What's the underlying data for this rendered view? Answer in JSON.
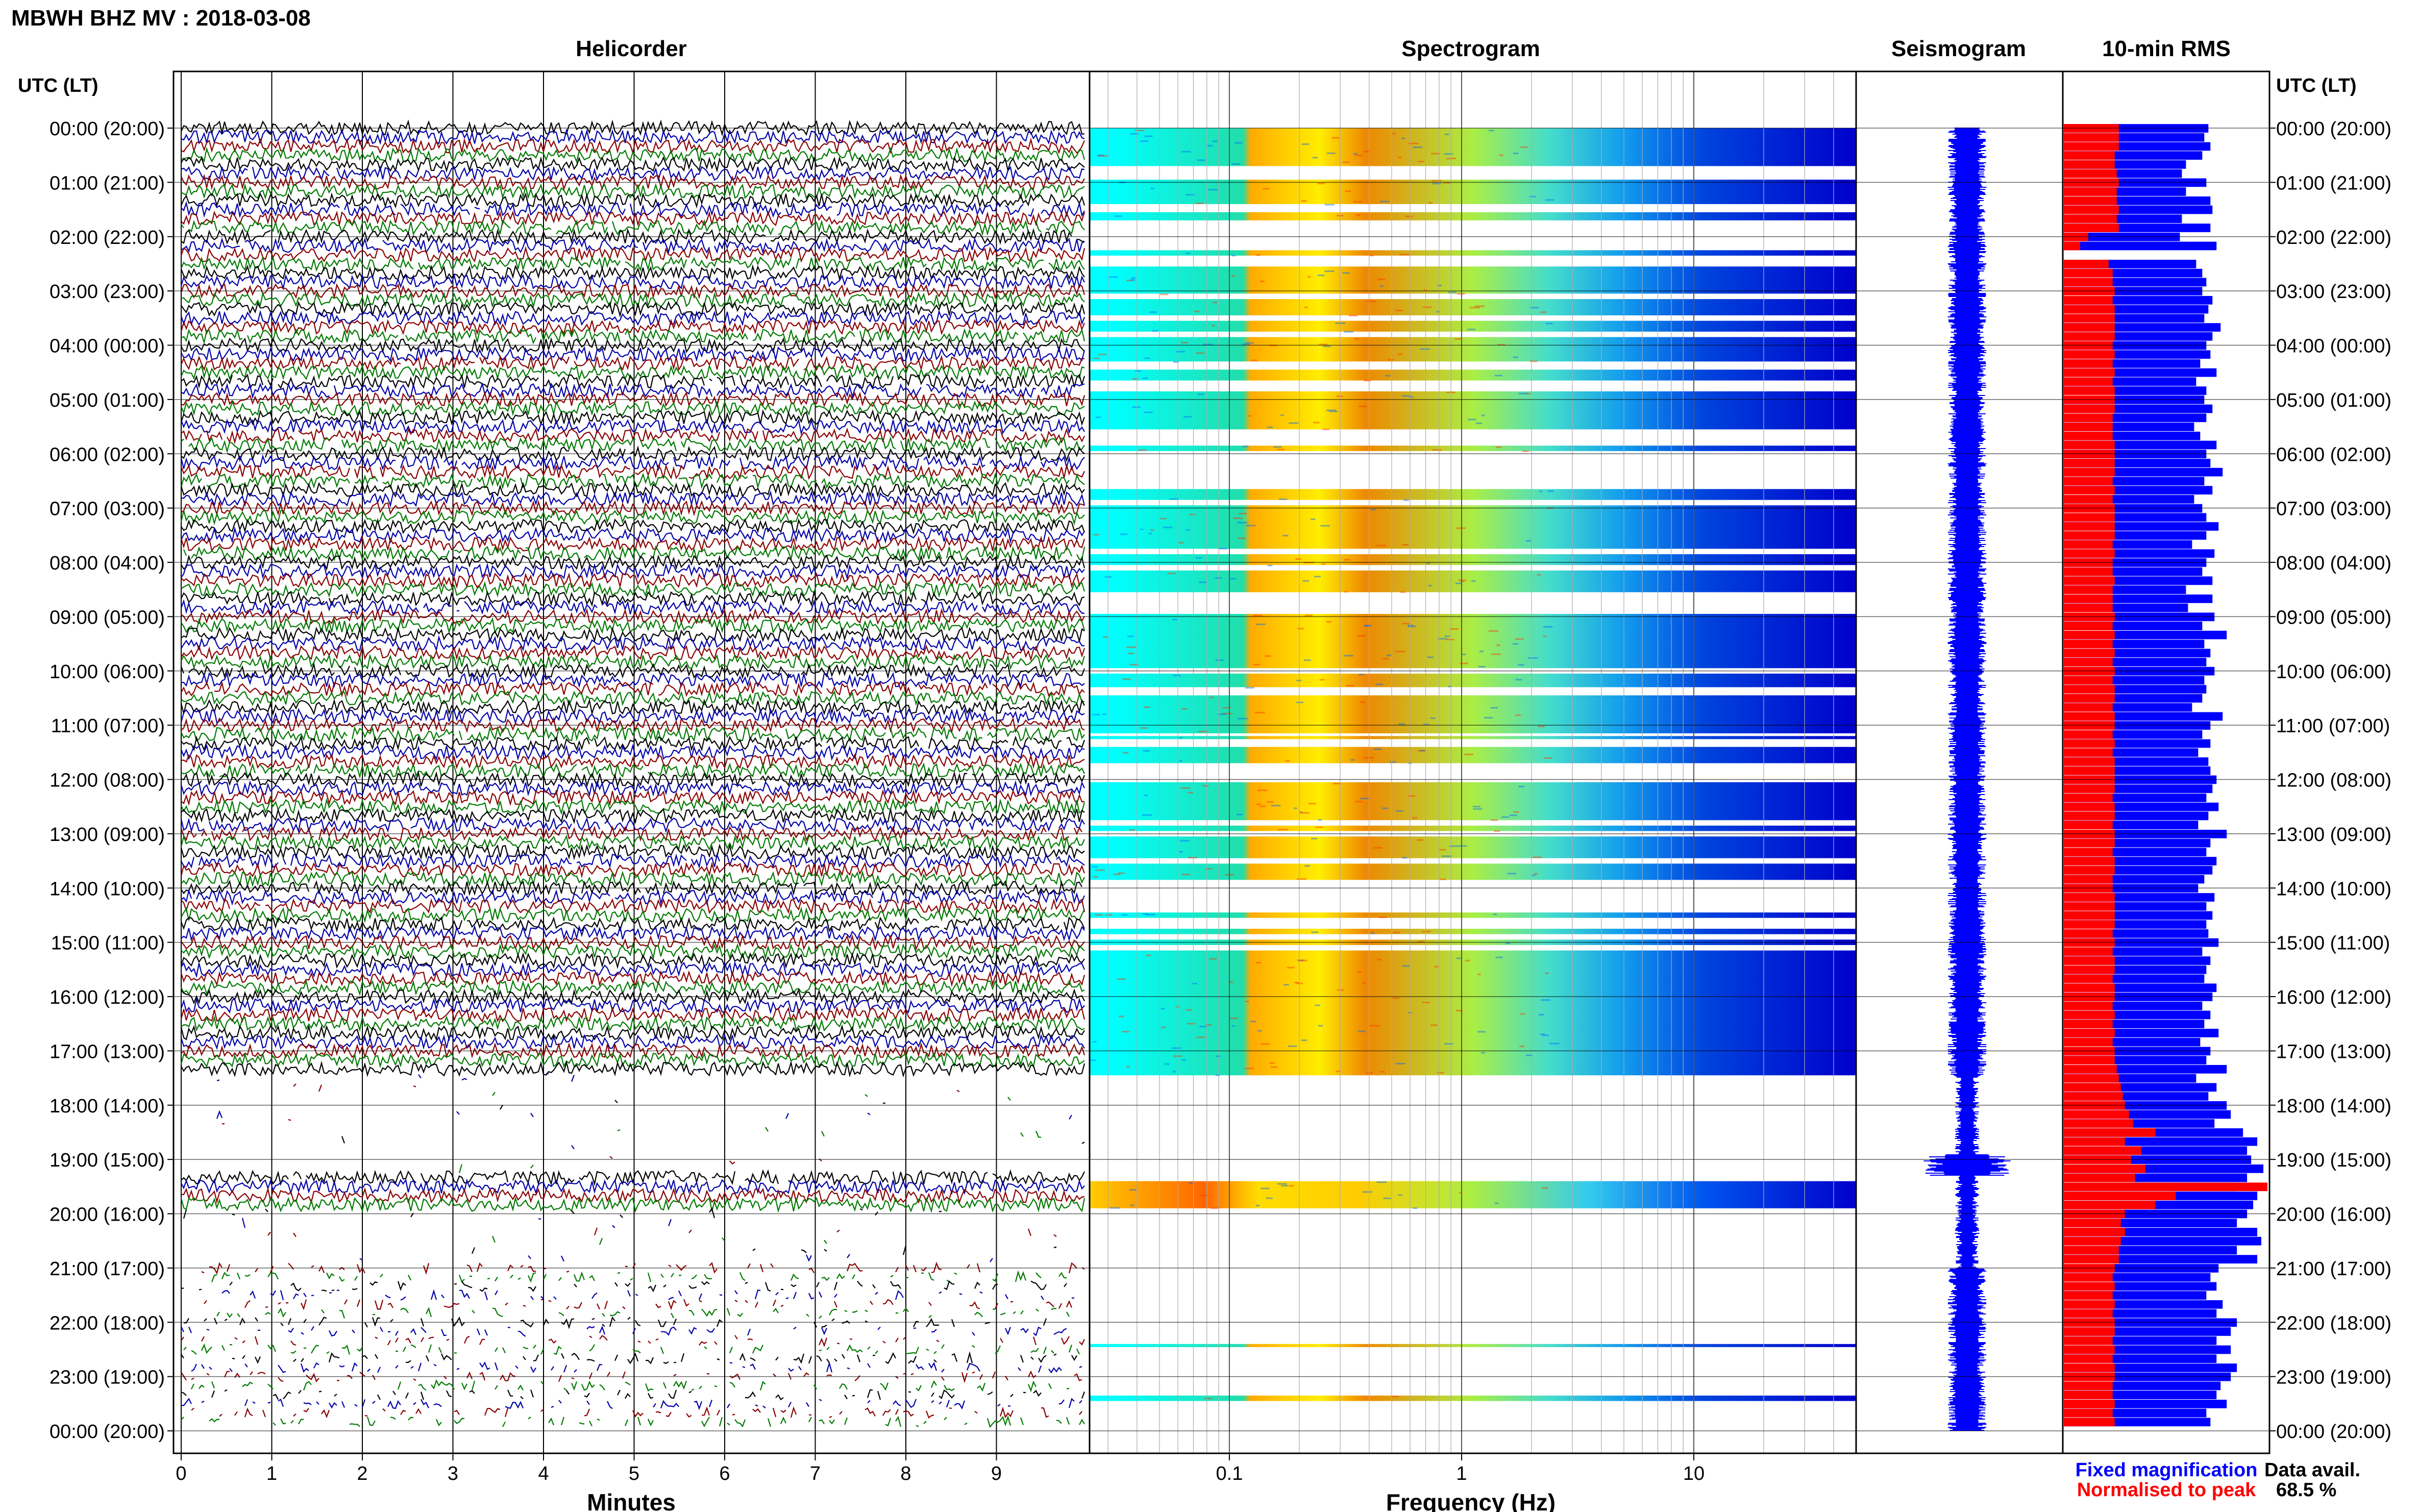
{
  "figure": {
    "title": "MBWH BHZ MV : 2018-03-08",
    "time_axis_label": "UTC (LT)",
    "data_avail_label": "Data avail.",
    "data_avail_value": "68.5 %"
  },
  "colors": {
    "trace_cycle": [
      "#000000",
      "#0000aa",
      "#8b0000",
      "#007a00"
    ],
    "rms_fixed": "#0000ff",
    "rms_normalised": "#ff0000",
    "seismogram": "#0000ff",
    "frame": "#000000"
  },
  "time_labels": [
    "00:00 (20:00)",
    "01:00 (21:00)",
    "02:00 (22:00)",
    "03:00 (23:00)",
    "04:00 (00:00)",
    "05:00 (01:00)",
    "06:00 (02:00)",
    "07:00 (03:00)",
    "08:00 (04:00)",
    "09:00 (05:00)",
    "10:00 (06:00)",
    "11:00 (07:00)",
    "12:00 (08:00)",
    "13:00 (09:00)",
    "14:00 (10:00)",
    "15:00 (11:00)",
    "16:00 (12:00)",
    "17:00 (13:00)",
    "18:00 (14:00)",
    "19:00 (15:00)",
    "20:00 (16:00)",
    "21:00 (17:00)",
    "22:00 (18:00)",
    "23:00 (19:00)",
    "00:00 (20:00)"
  ],
  "chart_data": [
    {
      "type": "line",
      "title": "Helicorder",
      "xlabel": "Minutes",
      "x_ticks": [
        "0",
        "1",
        "2",
        "3",
        "4",
        "5",
        "6",
        "7",
        "8",
        "9"
      ],
      "xlim": [
        0,
        10
      ],
      "rows_per_hour": 6,
      "hours": 24
    },
    {
      "type": "heatmap",
      "title": "Spectrogram",
      "xlabel": "Frequency (Hz)",
      "x_scale": "log",
      "x_ticks": [
        "0.1",
        "1",
        "10"
      ],
      "xlim": [
        0.025,
        50
      ],
      "colormap": "jet",
      "data_segments_hours": [
        [
          0.0,
          0.7
        ],
        [
          0.95,
          1.4
        ],
        [
          1.55,
          1.7
        ],
        [
          2.25,
          2.35
        ],
        [
          2.55,
          3.05
        ],
        [
          3.15,
          3.45
        ],
        [
          3.55,
          3.75
        ],
        [
          3.85,
          4.3
        ],
        [
          4.45,
          4.65
        ],
        [
          4.85,
          5.55
        ],
        [
          5.85,
          5.95
        ],
        [
          6.65,
          6.85
        ],
        [
          6.95,
          7.75
        ],
        [
          7.85,
          8.05
        ],
        [
          8.15,
          8.55
        ],
        [
          8.95,
          9.95
        ],
        [
          10.05,
          10.3
        ],
        [
          10.45,
          11.15
        ],
        [
          11.2,
          11.25
        ],
        [
          11.4,
          11.7
        ],
        [
          12.05,
          12.75
        ],
        [
          12.85,
          12.95
        ],
        [
          13.05,
          13.45
        ],
        [
          13.55,
          13.85
        ],
        [
          14.45,
          14.55
        ],
        [
          14.75,
          14.85
        ],
        [
          14.95,
          15.05
        ],
        [
          15.15,
          17.45
        ],
        [
          19.4,
          19.9
        ],
        [
          22.4,
          22.45
        ],
        [
          23.35,
          23.45
        ]
      ]
    },
    {
      "type": "line",
      "title": "Seismogram"
    },
    {
      "type": "bar",
      "title": "10-min RMS",
      "orientation": "horizontal",
      "legend": [
        "Fixed magnification",
        "Normalised to peak"
      ],
      "legend_position": "bottom",
      "series": [
        {
          "name": "Fixed magnification",
          "color": "#0000ff",
          "values": [
            0.71,
            0.69,
            0.72,
            0.68,
            0.6,
            0.58,
            0.7,
            0.6,
            0.72,
            0.73,
            0.58,
            0.72,
            0.57,
            0.75,
            0.0,
            0.65,
            0.68,
            0.7,
            0.68,
            0.73,
            0.71,
            0.69,
            0.77,
            0.73,
            0.7,
            0.72,
            0.67,
            0.75,
            0.65,
            0.7,
            0.69,
            0.73,
            0.7,
            0.64,
            0.67,
            0.75,
            0.7,
            0.72,
            0.78,
            0.69,
            0.73,
            0.64,
            0.68,
            0.7,
            0.76,
            0.7,
            0.63,
            0.74,
            0.7,
            0.68,
            0.73,
            0.6,
            0.73,
            0.61,
            0.74,
            0.68,
            0.8,
            0.69,
            0.72,
            0.7,
            0.74,
            0.69,
            0.7,
            0.68,
            0.63,
            0.78,
            0.72,
            0.68,
            0.72,
            0.66,
            0.71,
            0.72,
            0.75,
            0.73,
            0.7,
            0.76,
            0.71,
            0.66,
            0.8,
            0.72,
            0.7,
            0.75,
            0.73,
            0.69,
            0.66,
            0.74,
            0.7,
            0.73,
            0.7,
            0.71,
            0.76,
            0.68,
            0.72,
            0.7,
            0.69,
            0.75,
            0.73,
            0.68,
            0.72,
            0.69,
            0.76,
            0.67,
            0.72,
            0.7,
            0.8,
            0.65,
            0.75,
            0.71,
            0.8,
            0.82,
            0.74,
            0.88,
            0.95,
            0.9,
            0.92,
            0.98,
            0.9,
            0.85,
            0.95,
            0.93,
            0.9,
            0.85,
            0.95,
            0.97,
            0.85,
            0.95,
            0.76,
            0.72,
            0.75,
            0.7,
            0.78,
            0.75,
            0.85,
            0.82,
            0.75,
            0.82,
            0.75,
            0.85,
            0.82,
            0.77,
            0.75,
            0.8,
            0.7,
            0.72
          ]
        },
        {
          "name": "Normalised to peak",
          "color": "#ff0000",
          "values": [
            0.27,
            0.27,
            0.27,
            0.25,
            0.25,
            0.26,
            0.27,
            0.26,
            0.26,
            0.27,
            0.26,
            0.27,
            0.12,
            0.08,
            0.0,
            0.22,
            0.24,
            0.24,
            0.25,
            0.24,
            0.25,
            0.25,
            0.25,
            0.25,
            0.24,
            0.25,
            0.24,
            0.25,
            0.24,
            0.25,
            0.25,
            0.25,
            0.24,
            0.24,
            0.24,
            0.25,
            0.25,
            0.25,
            0.25,
            0.24,
            0.25,
            0.24,
            0.25,
            0.25,
            0.25,
            0.25,
            0.24,
            0.25,
            0.24,
            0.24,
            0.25,
            0.24,
            0.24,
            0.24,
            0.25,
            0.24,
            0.25,
            0.24,
            0.25,
            0.24,
            0.25,
            0.24,
            0.25,
            0.25,
            0.24,
            0.25,
            0.25,
            0.24,
            0.25,
            0.24,
            0.25,
            0.25,
            0.25,
            0.25,
            0.24,
            0.25,
            0.25,
            0.24,
            0.25,
            0.25,
            0.24,
            0.25,
            0.25,
            0.24,
            0.24,
            0.25,
            0.25,
            0.25,
            0.25,
            0.24,
            0.25,
            0.24,
            0.25,
            0.25,
            0.24,
            0.25,
            0.25,
            0.24,
            0.25,
            0.24,
            0.25,
            0.24,
            0.25,
            0.25,
            0.26,
            0.27,
            0.28,
            0.29,
            0.3,
            0.32,
            0.34,
            0.45,
            0.3,
            0.38,
            0.33,
            0.4,
            0.35,
            1.0,
            0.55,
            0.45,
            0.3,
            0.28,
            0.3,
            0.28,
            0.27,
            0.27,
            0.25,
            0.24,
            0.25,
            0.24,
            0.25,
            0.24,
            0.25,
            0.25,
            0.24,
            0.25,
            0.24,
            0.25,
            0.25,
            0.24,
            0.24,
            0.25,
            0.24,
            0.25
          ]
        }
      ]
    }
  ]
}
